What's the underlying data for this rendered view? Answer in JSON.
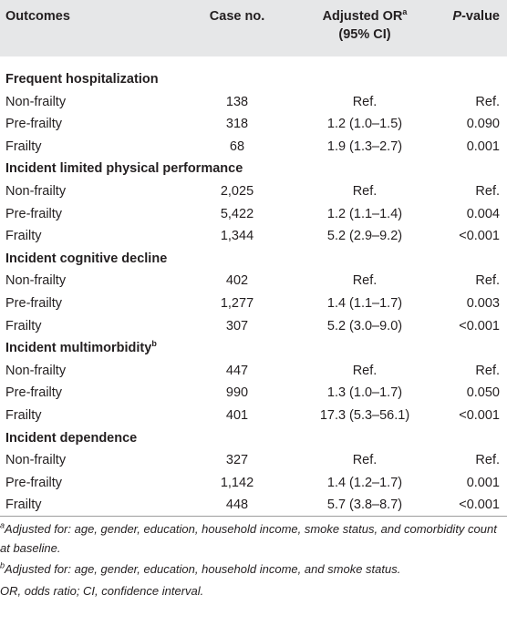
{
  "header": {
    "outcomes": "Outcomes",
    "case_no": "Case no.",
    "adjusted_or": "Adjusted OR",
    "adjusted_or_note": "a",
    "adjusted_or_ci": "(95% CI)",
    "p_italic": "P",
    "p_rest": "-value"
  },
  "groups": [
    {
      "title": "Frequent hospitalization",
      "rows": [
        [
          "Non-frailty",
          "138",
          "Ref.",
          "Ref."
        ],
        [
          "Pre-frailty",
          "318",
          "1.2 (1.0–1.5)",
          "0.090"
        ],
        [
          "Frailty",
          "68",
          "1.9 (1.3–2.7)",
          "0.001"
        ]
      ]
    },
    {
      "title": "Incident limited physical performance",
      "rows": [
        [
          "Non-frailty",
          "2,025",
          "Ref.",
          "Ref."
        ],
        [
          "Pre-frailty",
          "5,422",
          "1.2 (1.1–1.4)",
          "0.004"
        ],
        [
          "Frailty",
          "1,344",
          "5.2 (2.9–9.2)",
          "<0.001"
        ]
      ]
    },
    {
      "title": "Incident cognitive decline",
      "rows": [
        [
          "Non-frailty",
          "402",
          "Ref.",
          "Ref."
        ],
        [
          "Pre-frailty",
          "1,277",
          "1.4 (1.1–1.7)",
          "0.003"
        ],
        [
          "Frailty",
          "307",
          "5.2 (3.0–9.0)",
          "<0.001"
        ]
      ]
    },
    {
      "title": "Incident multimorbidity",
      "title_note": "b",
      "rows": [
        [
          "Non-frailty",
          "447",
          "Ref.",
          "Ref."
        ],
        [
          "Pre-frailty",
          "990",
          "1.3 (1.0–1.7)",
          "0.050"
        ],
        [
          "Frailty",
          "401",
          "17.3 (5.3–56.1)",
          "<0.001"
        ]
      ]
    },
    {
      "title": "Incident dependence",
      "rows": [
        [
          "Non-frailty",
          "327",
          "Ref.",
          "Ref."
        ],
        [
          "Pre-frailty",
          "1,142",
          "1.4 (1.2–1.7)",
          "0.001"
        ],
        [
          "Frailty",
          "448",
          "5.7 (3.8–8.7)",
          "<0.001"
        ]
      ]
    }
  ],
  "footnotes": [
    {
      "mark": "a",
      "text": "Adjusted for: age, gender, education, household income, smoke status, and comorbidity count at baseline."
    },
    {
      "mark": "b",
      "text": "Adjusted for: age, gender, education, household income, and smoke status."
    },
    {
      "text": "OR, odds ratio; CI, confidence interval."
    }
  ]
}
